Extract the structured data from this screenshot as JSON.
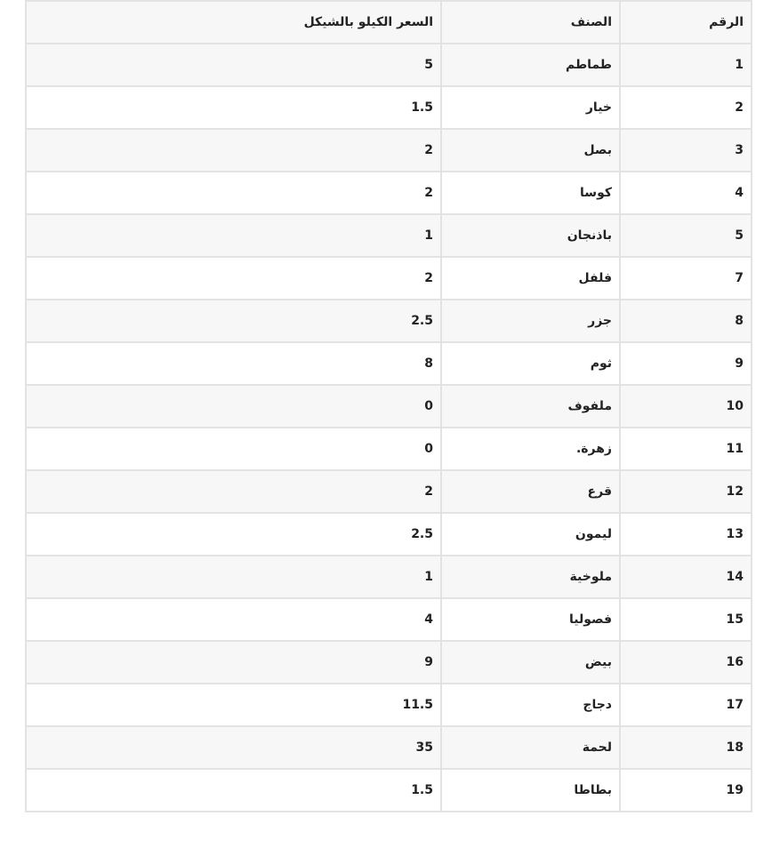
{
  "table": {
    "headers": [
      "الرقم",
      "الصنف",
      "السعر الكيلو بالشيكل"
    ],
    "rows": [
      [
        "1",
        "طماطم",
        "5"
      ],
      [
        "2",
        "خيار",
        "1.5"
      ],
      [
        "3",
        "بصل",
        "2"
      ],
      [
        "4",
        "كوسا",
        "2"
      ],
      [
        "5",
        "باذنجان",
        "1"
      ],
      [
        "7",
        "فلفل",
        "2"
      ],
      [
        "8",
        "جزر",
        "2.5"
      ],
      [
        "9",
        "ثوم",
        "8"
      ],
      [
        "10",
        "ملفوف",
        "0"
      ],
      [
        "11",
        "زهرة.",
        "0"
      ],
      [
        "12",
        "قرع",
        "2"
      ],
      [
        "13",
        "ليمون",
        "2.5"
      ],
      [
        "14",
        "ملوخية",
        "1"
      ],
      [
        "15",
        "فصوليا",
        "4"
      ],
      [
        "16",
        "بيض",
        "9"
      ],
      [
        "17",
        "دجاج",
        "11.5"
      ],
      [
        "18",
        "لحمة",
        "35"
      ],
      [
        "19",
        "بطاطا",
        "1.5"
      ]
    ]
  }
}
